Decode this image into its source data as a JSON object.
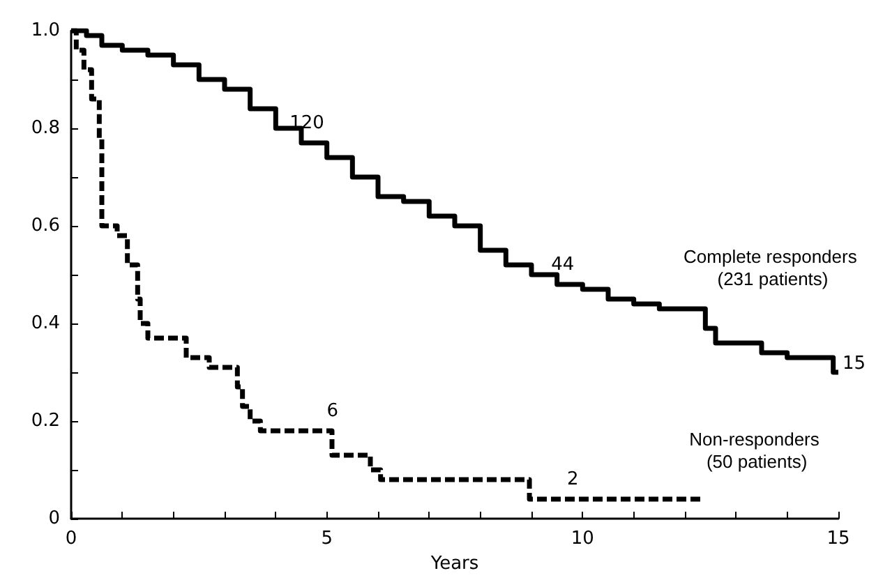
{
  "chart_data": {
    "type": "step",
    "xlabel": "Years",
    "xlim": [
      0,
      15
    ],
    "xticks": [
      0,
      {
        "value": 1,
        "label": null
      },
      {
        "value": 2,
        "label": null
      },
      {
        "value": 3,
        "label": null
      },
      {
        "value": 4,
        "label": null
      },
      5,
      {
        "value": 6,
        "label": null
      },
      {
        "value": 7,
        "label": null
      },
      {
        "value": 8,
        "label": null
      },
      {
        "value": 9,
        "label": null
      },
      10,
      {
        "value": 11,
        "label": null
      },
      {
        "value": 12,
        "label": null
      },
      {
        "value": 13,
        "label": null
      },
      {
        "value": 14,
        "label": null
      },
      15
    ],
    "ylim": [
      0,
      1
    ],
    "yticks": [
      0,
      {
        "value": 0.1,
        "label": null
      },
      0.2,
      {
        "value": 0.3,
        "label": null
      },
      0.4,
      {
        "value": 0.5,
        "label": null
      },
      0.6,
      {
        "value": 0.7,
        "label": null
      },
      0.8,
      {
        "value": 0.9,
        "label": null
      },
      {
        "value": 1,
        "label": "1.0"
      }
    ],
    "grid": false,
    "legend": false,
    "marker": "none",
    "series": [
      {
        "name": "Complete responders (231 patients)",
        "color": "#000000",
        "line_style": "solid",
        "x": [
          0,
          0.3,
          0.6,
          1,
          1.5,
          2,
          2.5,
          3,
          3.5,
          4,
          4.5,
          5,
          5.5,
          6,
          6.5,
          7,
          7.5,
          8,
          8.5,
          9,
          9.5,
          10,
          10.5,
          11,
          11.5,
          12.4,
          12.6,
          13.5,
          14,
          14.9,
          15
        ],
        "values": [
          1,
          0.99,
          0.97,
          0.96,
          0.95,
          0.93,
          0.9,
          0.88,
          0.84,
          0.8,
          0.77,
          0.74,
          0.7,
          0.66,
          0.65,
          0.62,
          0.6,
          0.55,
          0.52,
          0.5,
          0.48,
          0.47,
          0.45,
          0.44,
          0.43,
          0.39,
          0.36,
          0.34,
          0.33,
          0.3,
          0.3
        ]
      },
      {
        "name": "Non-responders (50 patients)",
        "color": "#000000",
        "line_style": "dashed",
        "x": [
          0,
          0.1,
          0.25,
          0.4,
          0.55,
          0.6,
          0.9,
          1.1,
          1.3,
          1.35,
          1.5,
          2.25,
          2.7,
          3.25,
          3.35,
          3.5,
          3.7,
          3.95,
          5.1,
          5.85,
          6.05,
          8.96,
          12.37
        ],
        "values": [
          1,
          0.96,
          0.92,
          0.86,
          0.78,
          0.6,
          0.58,
          0.52,
          0.45,
          0.4,
          0.37,
          0.33,
          0.31,
          0.27,
          0.23,
          0.2,
          0.18,
          0.18,
          0.13,
          0.1,
          0.08,
          0.04,
          0.04
        ]
      }
    ],
    "annotations": [
      {
        "text": "120",
        "x": 4.5,
        "y": 0.77
      },
      {
        "text": "44",
        "x": 9.5,
        "y": 0.48
      },
      {
        "text": "15",
        "x": 15,
        "y": 0.3
      },
      {
        "text": "6",
        "x": 5,
        "y": 0.18
      },
      {
        "text": "2",
        "x": 9.7,
        "y": 0.04
      }
    ]
  }
}
